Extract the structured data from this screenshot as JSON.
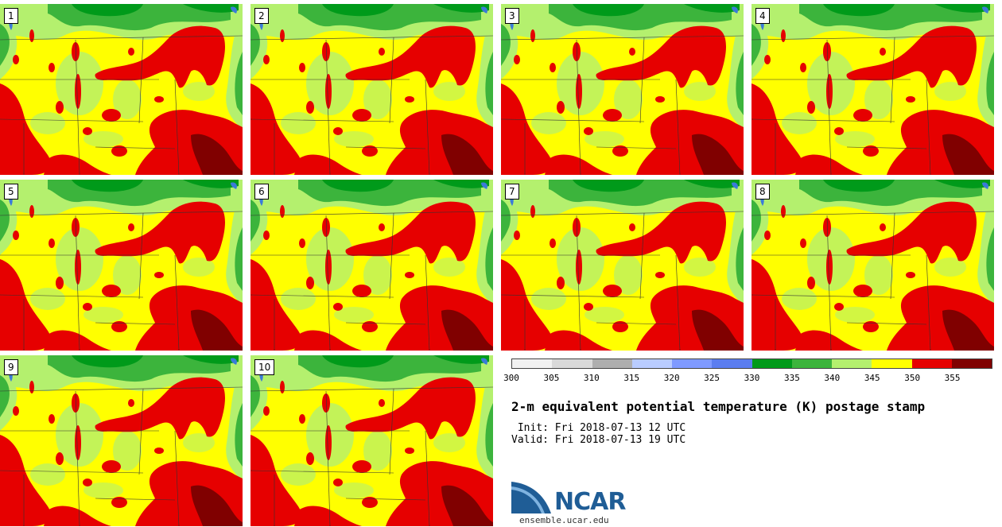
{
  "members": [
    {
      "label": "1"
    },
    {
      "label": "2"
    },
    {
      "label": "3"
    },
    {
      "label": "4"
    },
    {
      "label": "5"
    },
    {
      "label": "6"
    },
    {
      "label": "7"
    },
    {
      "label": "8"
    },
    {
      "label": "9"
    },
    {
      "label": "10"
    }
  ],
  "colorbar": {
    "colors": [
      "#f2f2f2",
      "#d9d9d9",
      "#aeaeae",
      "#b9ccff",
      "#7f9aff",
      "#5b7df0",
      "#009a1a",
      "#3cb43c",
      "#b4f06e",
      "#ffff00",
      "#e60000",
      "#800000"
    ],
    "ticks": [
      "300",
      "305",
      "310",
      "315",
      "320",
      "325",
      "330",
      "335",
      "340",
      "345",
      "350",
      "355"
    ]
  },
  "title": "2-m equivalent potential temperature (K) postage stamp",
  "init": " Init: Fri 2018-07-13 12 UTC",
  "valid": "Valid: Fri 2018-07-13 19 UTC",
  "logo": {
    "text": "NCAR",
    "website": "ensemble.ucar.edu"
  }
}
